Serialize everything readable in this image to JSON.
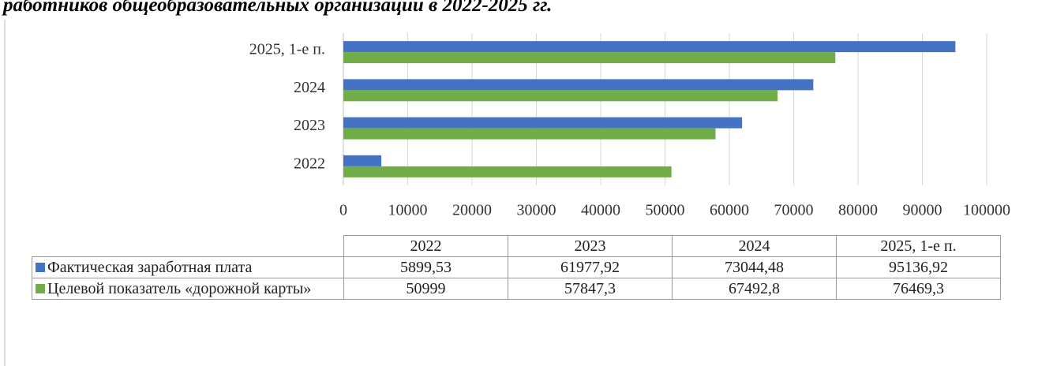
{
  "chart_data": {
    "type": "barh",
    "title": "работников общеобразовательных организаций в 2022-2025 гг.",
    "categories": [
      "2022",
      "2023",
      "2024",
      "2025, 1-е п."
    ],
    "series": [
      {
        "name": "Фактическая заработная плата",
        "color": "#4472c4",
        "values": [
          5899.53,
          61977.92,
          73044.48,
          95136.92
        ],
        "value_labels": [
          "5899,53",
          "61977,92",
          "73044,48",
          "95136,92"
        ]
      },
      {
        "name": "Целевой показатель «дорожной карты»",
        "color": "#70ad47",
        "values": [
          50999,
          57847.3,
          67492.8,
          76469.3
        ],
        "value_labels": [
          "50999",
          "57847,3",
          "67492,8",
          "76469,3"
        ]
      }
    ],
    "xlim": [
      0,
      100000
    ],
    "xticks": [
      0,
      10000,
      20000,
      30000,
      40000,
      50000,
      60000,
      70000,
      80000,
      90000,
      100000
    ],
    "grid": true
  }
}
